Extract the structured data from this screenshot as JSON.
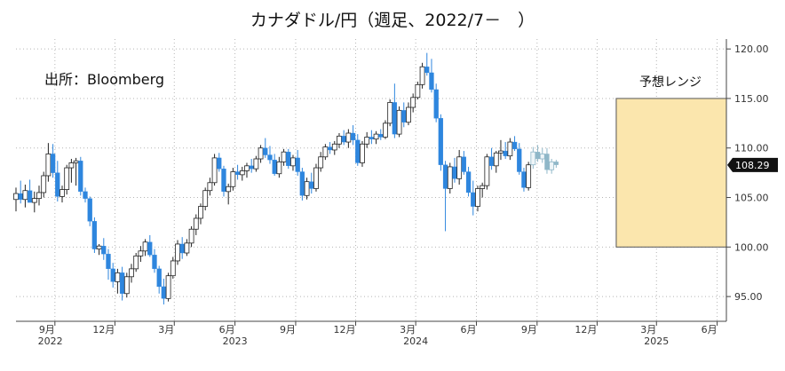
{
  "chart_data": {
    "type": "candlestick",
    "title": "カナダドル/円（週足、2022/7－　）",
    "source": "出所：Bloomberg",
    "colors": {
      "up": "#ffffff",
      "up_stroke": "#222222",
      "down": "#2e86de",
      "forecast_candles": "#8fb7c8",
      "forecast_box": "#fbe6ad",
      "forecast_box_border": "#555555",
      "grid": "#b5b5b5",
      "last_badge": "#111111"
    },
    "ylim": [
      92.5,
      121
    ],
    "y_ticks": [
      "95.00",
      "100.00",
      "105.00",
      "110.00",
      "115.00",
      "120.00"
    ],
    "x_ticks": [
      {
        "date": "2022-09-01",
        "label": "9月"
      },
      {
        "date": "2022-12-01",
        "label": "12月"
      },
      {
        "date": "2023-03-01",
        "label": "3月"
      },
      {
        "date": "2023-06-01",
        "label": "6月"
      },
      {
        "date": "2023-09-01",
        "label": "9月"
      },
      {
        "date": "2023-12-01",
        "label": "12月"
      },
      {
        "date": "2024-03-01",
        "label": "3月"
      },
      {
        "date": "2024-06-01",
        "label": "6月"
      },
      {
        "date": "2024-09-01",
        "label": "9月"
      },
      {
        "date": "2024-12-01",
        "label": "12月"
      },
      {
        "date": "2025-03-01",
        "label": "3月"
      },
      {
        "date": "2025-06-01",
        "label": "6月"
      }
    ],
    "x_years": [
      {
        "date": "2022-08-25",
        "label": "2022"
      },
      {
        "date": "2023-06-01",
        "label": "2023"
      },
      {
        "date": "2024-03-01",
        "label": "2024"
      },
      {
        "date": "2025-03-01",
        "label": "2025"
      }
    ],
    "xlim": [
      "2022-07-04",
      "2025-06-15"
    ],
    "last_value": "108.29",
    "forecast_range": {
      "label": "予想レンジ",
      "x_start": "2024-12-30",
      "x_end": "2025-06-15",
      "low": 100.0,
      "high": 115.0
    },
    "weeks_start": "2022-07-04",
    "candles_ohlc": [
      [
        104.8,
        106.0,
        103.6,
        105.4
      ],
      [
        105.4,
        106.7,
        104.4,
        104.8
      ],
      [
        104.8,
        106.3,
        104.0,
        105.7
      ],
      [
        105.7,
        106.8,
        104.6,
        104.5
      ],
      [
        104.5,
        105.6,
        103.5,
        104.9
      ],
      [
        104.9,
        106.2,
        104.2,
        105.5
      ],
      [
        105.5,
        107.6,
        105.0,
        107.2
      ],
      [
        107.2,
        110.5,
        106.6,
        109.4
      ],
      [
        109.4,
        110.4,
        107.0,
        107.5
      ],
      [
        107.5,
        108.7,
        104.6,
        105.1
      ],
      [
        105.1,
        106.2,
        104.5,
        105.8
      ],
      [
        105.8,
        108.3,
        105.3,
        108.0
      ],
      [
        108.0,
        108.9,
        106.5,
        108.5
      ],
      [
        108.5,
        109.0,
        106.2,
        108.7
      ],
      [
        108.7,
        109.1,
        105.2,
        105.6
      ],
      [
        105.6,
        106.0,
        104.5,
        104.9
      ],
      [
        104.9,
        105.1,
        102.1,
        102.6
      ],
      [
        102.6,
        103.0,
        99.4,
        99.8
      ],
      [
        99.8,
        100.3,
        99.2,
        100.1
      ],
      [
        100.1,
        100.9,
        98.7,
        99.3
      ],
      [
        99.3,
        99.8,
        96.7,
        97.8
      ],
      [
        97.8,
        98.4,
        95.9,
        96.5
      ],
      [
        96.5,
        97.8,
        95.3,
        97.4
      ],
      [
        97.4,
        98.0,
        94.6,
        95.3
      ],
      [
        95.3,
        97.4,
        94.9,
        97.0
      ],
      [
        97.0,
        98.3,
        96.4,
        97.8
      ],
      [
        97.8,
        99.4,
        97.5,
        99.1
      ],
      [
        99.1,
        100.1,
        98.5,
        99.6
      ],
      [
        99.6,
        100.8,
        99.1,
        100.5
      ],
      [
        100.5,
        101.2,
        99.0,
        99.2
      ],
      [
        99.2,
        99.8,
        97.4,
        97.8
      ],
      [
        97.8,
        98.1,
        95.3,
        96.0
      ],
      [
        96.0,
        96.8,
        94.2,
        94.8
      ],
      [
        94.8,
        97.4,
        94.5,
        97.1
      ],
      [
        97.1,
        99.0,
        96.8,
        98.6
      ],
      [
        98.6,
        100.7,
        98.2,
        100.3
      ],
      [
        100.3,
        101.0,
        98.8,
        99.4
      ],
      [
        99.4,
        100.8,
        99.1,
        100.4
      ],
      [
        100.4,
        102.1,
        100.0,
        101.8
      ],
      [
        101.8,
        103.3,
        101.2,
        102.9
      ],
      [
        102.9,
        104.4,
        102.3,
        104.1
      ],
      [
        104.1,
        106.0,
        103.7,
        105.7
      ],
      [
        105.7,
        107.0,
        105.2,
        106.5
      ],
      [
        106.5,
        109.4,
        106.2,
        109.0
      ],
      [
        109.0,
        109.5,
        107.6,
        107.9
      ],
      [
        107.9,
        108.2,
        105.1,
        105.6
      ],
      [
        105.6,
        106.4,
        104.3,
        106.1
      ],
      [
        106.1,
        108.0,
        105.7,
        107.6
      ],
      [
        107.6,
        108.3,
        106.8,
        107.3
      ],
      [
        107.3,
        108.1,
        106.7,
        107.7
      ],
      [
        107.7,
        108.5,
        107.0,
        108.2
      ],
      [
        108.2,
        108.9,
        107.5,
        107.9
      ],
      [
        107.9,
        109.2,
        107.6,
        108.9
      ],
      [
        108.9,
        110.3,
        108.5,
        110.0
      ],
      [
        110.0,
        111.0,
        109.0,
        109.3
      ],
      [
        109.3,
        110.2,
        108.4,
        108.8
      ],
      [
        108.8,
        109.4,
        107.2,
        107.4
      ],
      [
        107.4,
        109.1,
        107.0,
        108.6
      ],
      [
        108.6,
        109.9,
        108.2,
        109.6
      ],
      [
        109.6,
        109.9,
        107.9,
        108.2
      ],
      [
        108.2,
        109.3,
        107.7,
        109.0
      ],
      [
        109.0,
        109.8,
        107.2,
        107.6
      ],
      [
        107.6,
        108.0,
        104.7,
        105.2
      ],
      [
        105.2,
        107.0,
        104.8,
        106.6
      ],
      [
        106.6,
        107.5,
        105.4,
        105.9
      ],
      [
        105.9,
        108.4,
        105.6,
        108.0
      ],
      [
        108.0,
        109.6,
        107.6,
        109.1
      ],
      [
        109.1,
        110.4,
        108.8,
        110.1
      ],
      [
        110.1,
        110.6,
        109.4,
        109.8
      ],
      [
        109.8,
        110.7,
        109.3,
        110.4
      ],
      [
        110.4,
        111.5,
        110.0,
        111.2
      ],
      [
        111.2,
        111.8,
        110.3,
        110.6
      ],
      [
        110.6,
        111.9,
        110.0,
        111.5
      ],
      [
        111.5,
        112.3,
        110.3,
        110.8
      ],
      [
        110.8,
        111.4,
        108.2,
        108.5
      ],
      [
        108.5,
        110.7,
        108.1,
        110.4
      ],
      [
        110.4,
        111.6,
        110.0,
        111.1
      ],
      [
        111.1,
        111.8,
        110.4,
        110.9
      ],
      [
        110.9,
        111.7,
        110.4,
        111.4
      ],
      [
        111.4,
        111.9,
        110.8,
        111.1
      ],
      [
        111.1,
        112.8,
        110.9,
        112.5
      ],
      [
        112.5,
        114.9,
        112.2,
        114.6
      ],
      [
        114.6,
        116.5,
        111.0,
        111.4
      ],
      [
        111.4,
        114.2,
        111.1,
        113.8
      ],
      [
        113.8,
        114.6,
        112.1,
        112.6
      ],
      [
        112.6,
        114.6,
        112.3,
        114.1
      ],
      [
        114.1,
        115.5,
        113.6,
        115.1
      ],
      [
        115.1,
        116.7,
        114.9,
        116.4
      ],
      [
        116.4,
        118.6,
        116.0,
        118.2
      ],
      [
        118.2,
        119.6,
        117.3,
        117.6
      ],
      [
        117.6,
        119.0,
        115.6,
        115.9
      ],
      [
        115.9,
        116.5,
        112.6,
        113.0
      ],
      [
        113.0,
        113.4,
        107.7,
        108.3
      ],
      [
        108.3,
        108.7,
        101.6,
        105.9
      ],
      [
        105.9,
        108.5,
        105.4,
        108.1
      ],
      [
        108.1,
        109.0,
        106.5,
        106.9
      ],
      [
        106.9,
        109.8,
        106.3,
        109.1
      ],
      [
        109.1,
        109.7,
        107.3,
        107.6
      ],
      [
        107.6,
        108.1,
        105.1,
        105.5
      ],
      [
        105.5,
        106.7,
        103.2,
        104.1
      ],
      [
        104.1,
        106.2,
        103.6,
        105.9
      ],
      [
        105.9,
        106.5,
        105.0,
        106.2
      ],
      [
        106.2,
        109.4,
        105.8,
        109.1
      ],
      [
        109.1,
        110.0,
        107.8,
        108.2
      ],
      [
        108.2,
        109.7,
        107.5,
        109.5
      ],
      [
        109.5,
        110.8,
        108.8,
        109.7
      ],
      [
        109.7,
        110.6,
        108.9,
        109.2
      ],
      [
        109.2,
        111.0,
        108.8,
        110.6
      ],
      [
        110.6,
        111.2,
        109.7,
        109.9
      ],
      [
        109.9,
        110.5,
        107.3,
        107.6
      ],
      [
        107.6,
        108.0,
        105.6,
        106.0
      ],
      [
        106.0,
        108.6,
        105.7,
        108.3
      ]
    ],
    "forecast_candles_ohlc": [
      [
        108.3,
        110.1,
        107.9,
        109.6
      ],
      [
        109.6,
        110.3,
        108.6,
        108.9
      ],
      [
        108.9,
        110.0,
        108.5,
        109.4
      ],
      [
        109.4,
        110.0,
        107.4,
        107.8
      ],
      [
        107.8,
        108.9,
        107.4,
        108.6
      ],
      [
        108.6,
        108.8,
        108.0,
        108.3
      ]
    ]
  }
}
